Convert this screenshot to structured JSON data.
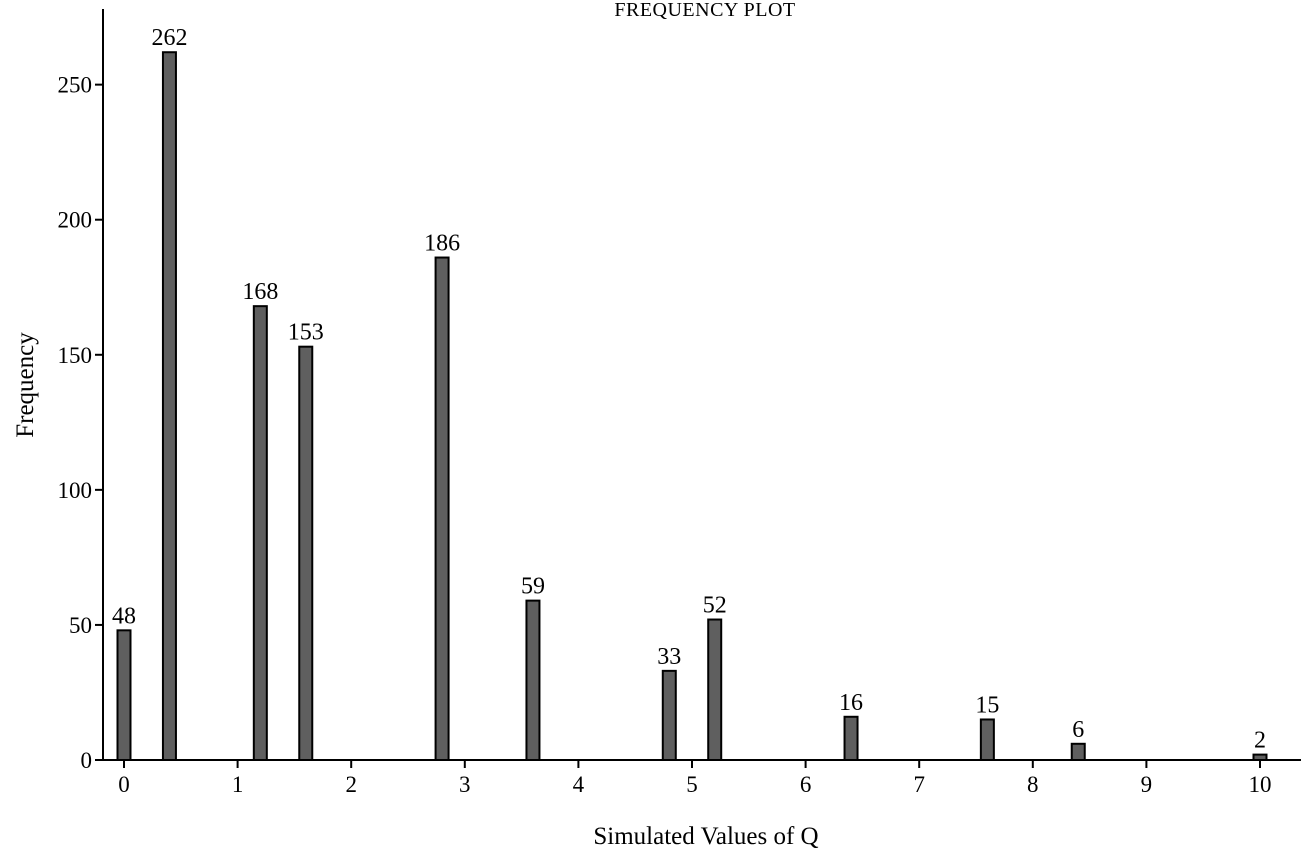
{
  "chart_data": {
    "type": "bar",
    "title": "FREQUENCY PLOT",
    "xlabel": "Simulated Values of Q",
    "ylabel": "Frequency",
    "xlim": [
      -0.2,
      10.4
    ],
    "ylim": [
      0,
      278
    ],
    "x_ticks": [
      0,
      1,
      2,
      3,
      4,
      5,
      6,
      7,
      8,
      9,
      10
    ],
    "y_ticks": [
      0,
      50,
      100,
      150,
      200,
      250
    ],
    "grid": false,
    "bar_color": "#5f5f5f",
    "bar_edge_color": "#000000",
    "points": [
      {
        "x": 0.0,
        "y": 48
      },
      {
        "x": 0.4,
        "y": 262
      },
      {
        "x": 1.2,
        "y": 168
      },
      {
        "x": 1.6,
        "y": 153
      },
      {
        "x": 2.8,
        "y": 186
      },
      {
        "x": 3.6,
        "y": 59
      },
      {
        "x": 4.8,
        "y": 33
      },
      {
        "x": 5.2,
        "y": 52
      },
      {
        "x": 6.4,
        "y": 16
      },
      {
        "x": 7.6,
        "y": 15
      },
      {
        "x": 8.4,
        "y": 6
      },
      {
        "x": 10.0,
        "y": 2
      }
    ]
  }
}
